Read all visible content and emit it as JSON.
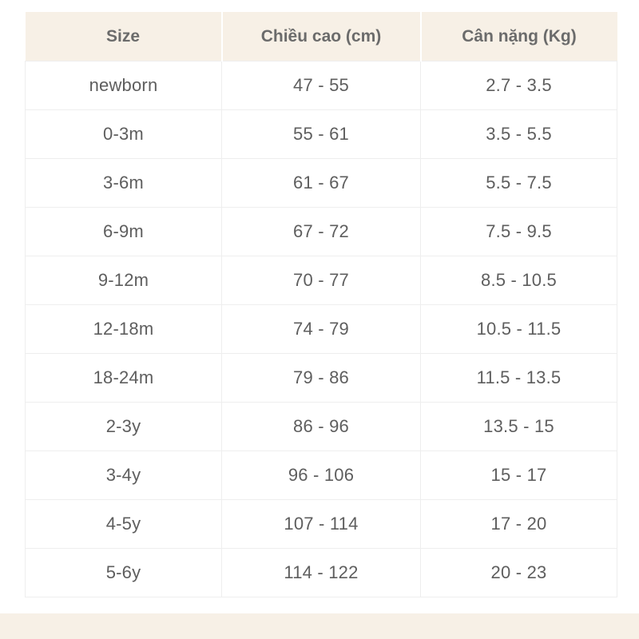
{
  "table": {
    "headers": [
      "Size",
      "Chiều cao (cm)",
      "Cân nặng (Kg)"
    ],
    "rows": [
      [
        "newborn",
        "47 - 55",
        "2.7 - 3.5"
      ],
      [
        "0-3m",
        "55 - 61",
        "3.5 - 5.5"
      ],
      [
        "3-6m",
        "61 - 67",
        "5.5 - 7.5"
      ],
      [
        "6-9m",
        "67 - 72",
        "7.5 - 9.5"
      ],
      [
        "9-12m",
        "70 - 77",
        "8.5 - 10.5"
      ],
      [
        "12-18m",
        "74 - 79",
        "10.5 - 11.5"
      ],
      [
        "18-24m",
        "79 - 86",
        "11.5 - 13.5"
      ],
      [
        "2-3y",
        "86 - 96",
        "13.5 - 15"
      ],
      [
        "3-4y",
        "96 - 106",
        "15 - 17"
      ],
      [
        "4-5y",
        "107 - 114",
        "17 - 20"
      ],
      [
        "5-6y",
        "114 - 122",
        "20 - 23"
      ]
    ]
  },
  "colors": {
    "header_background": "#f7f0e6",
    "header_text": "#6b6b6b",
    "cell_text": "#5e5e5e",
    "grid_line": "#eeeeee"
  }
}
